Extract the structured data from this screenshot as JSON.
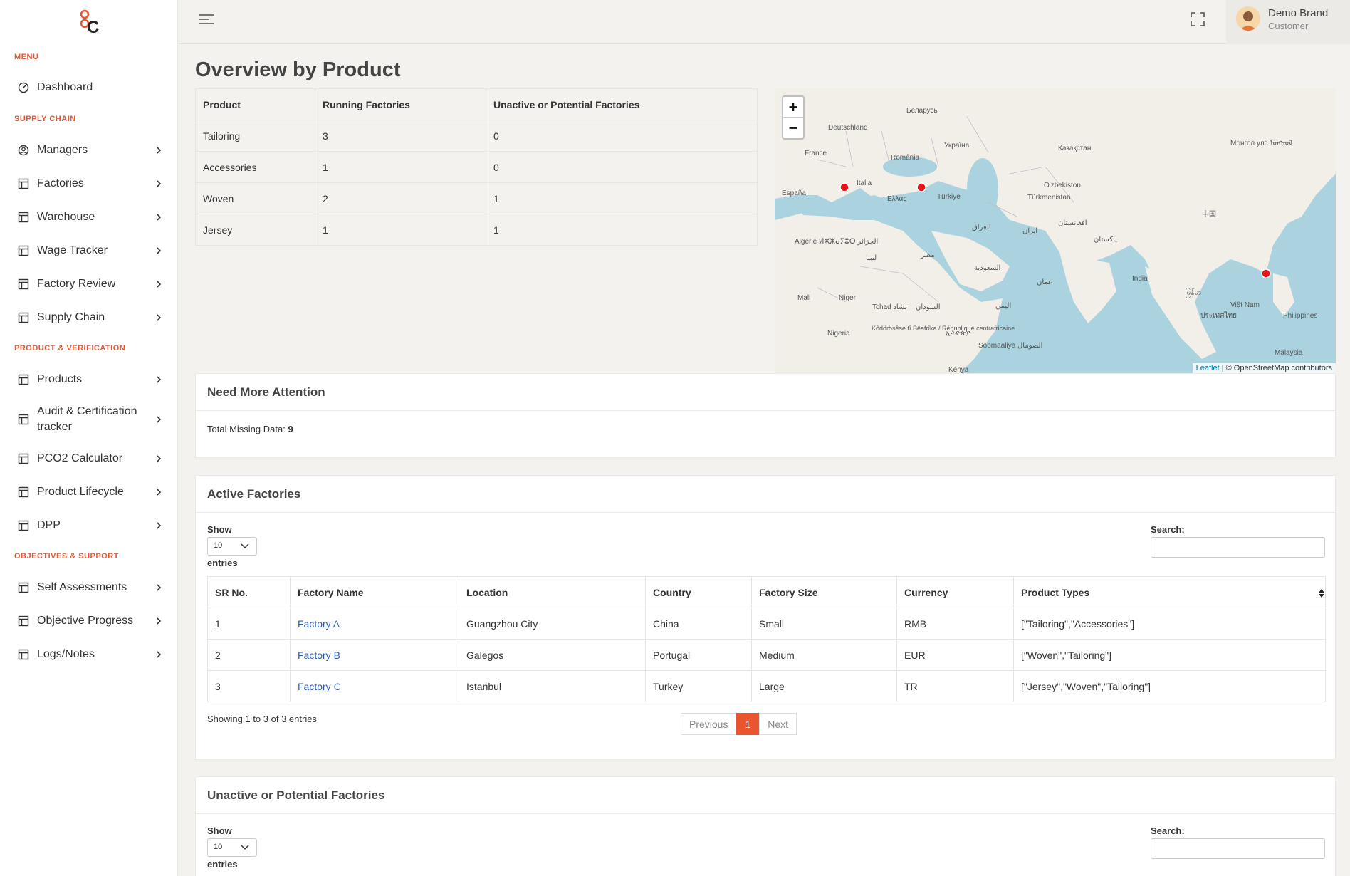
{
  "sidebar": {
    "sections": [
      {
        "title": "MENU",
        "items": [
          {
            "label": "Dashboard",
            "icon": "dashboard-icon"
          }
        ]
      },
      {
        "title": "SUPPLY CHAIN",
        "items": [
          {
            "label": "Managers"
          },
          {
            "label": "Factories"
          },
          {
            "label": "Warehouse"
          },
          {
            "label": "Wage Tracker"
          },
          {
            "label": "Factory Review"
          },
          {
            "label": "Supply Chain"
          }
        ]
      },
      {
        "title": "PRODUCT & VERIFICATION",
        "items": [
          {
            "label": "Products"
          },
          {
            "label": "Audit & Certification tracker"
          },
          {
            "label": "PCO2 Calculator"
          },
          {
            "label": "Product Lifecycle"
          },
          {
            "label": "DPP"
          }
        ]
      },
      {
        "title": "OBJECTIVES & SUPPORT",
        "items": [
          {
            "label": "Self Assessments"
          },
          {
            "label": "Objective Progress"
          },
          {
            "label": "Logs/Notes"
          }
        ]
      }
    ]
  },
  "user": {
    "name": "Demo Brand",
    "role": "Customer"
  },
  "page_title": "Overview by Product",
  "product_table": {
    "headers": [
      "Product",
      "Running Factories",
      "Unactive or Potential Factories"
    ],
    "rows": [
      [
        "Tailoring",
        "3",
        "0"
      ],
      [
        "Accessories",
        "1",
        "0"
      ],
      [
        "Woven",
        "2",
        "1"
      ],
      [
        "Jersey",
        "1",
        "1"
      ]
    ]
  },
  "map": {
    "attribution_link": "Leaflet",
    "attribution_text": " | © OpenStreetMap contributors",
    "labels": [
      "Беларусь",
      "Deutschland",
      "France",
      "Україна",
      "România",
      "Казақстан",
      "Монгол улс ᠮᠣᠩᠭᠣᠯ",
      "España",
      "Italia",
      "Ελλάς",
      "Türkiye",
      "O'zbekiston",
      "Türkmenistan",
      "中国",
      "Algérie ⵍⵣⵣⴰⵢⴻⵔ الجزائر",
      "ليبيا",
      "مصر",
      "العراق",
      "ایران",
      "افغانستان",
      "پاکستان",
      "السعودية",
      "India",
      "Mali",
      "Niger",
      "Tchad تشاد",
      "السودان",
      "عمان",
      "Việt Nam",
      "Philippines",
      "Nigeria",
      "Kôdörösêse tî Bêafrîka / République centrafricaine",
      "ኢትዮጵያ",
      "اليمن",
      "Soomaaliya الصومال",
      "Kenya",
      "Malaysia",
      "ประเทศไทย",
      "မြန်မာ"
    ]
  },
  "attention": {
    "title": "Need More Attention",
    "missing_label": "Total Missing Data: ",
    "missing_value": "9"
  },
  "active": {
    "title": "Active Factories",
    "show": "Show",
    "entries": "entries",
    "select_value": "10",
    "search": "Search:",
    "headers": [
      "SR No.",
      "Factory Name",
      "Location",
      "Country",
      "Factory Size",
      "Currency",
      "Product Types"
    ],
    "rows": [
      [
        "1",
        "Factory A",
        "Guangzhou City",
        "China",
        "Small",
        "RMB",
        "[\"Tailoring\",\"Accessories\"]"
      ],
      [
        "2",
        "Factory B",
        "Galegos",
        "Portugal",
        "Medium",
        "EUR",
        "[\"Woven\",\"Tailoring\"]"
      ],
      [
        "3",
        "Factory C",
        "Istanbul",
        "Turkey",
        "Large",
        "TR",
        "[\"Jersey\",\"Woven\",\"Tailoring\"]"
      ]
    ],
    "info": "Showing 1 to 3 of 3 entries",
    "prev": "Previous",
    "page": "1",
    "next": "Next"
  },
  "inactive": {
    "title": "Unactive or Potential Factories",
    "show": "Show",
    "entries": "entries",
    "select_value": "10",
    "search": "Search:"
  }
}
